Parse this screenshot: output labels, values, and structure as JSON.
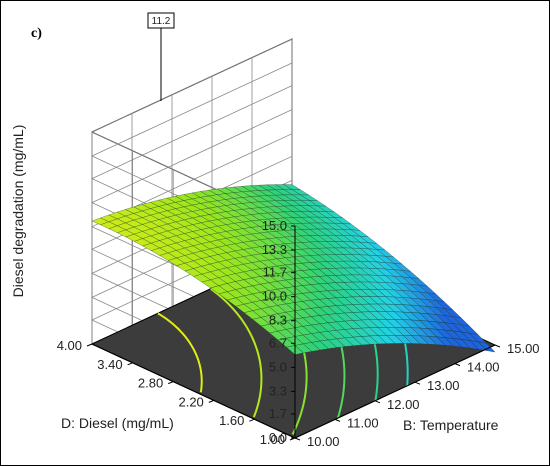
{
  "panel_label": "c)",
  "chart_data": {
    "type": "surface",
    "title": "",
    "zlabel": "Diesel degradation (mg/mL)",
    "xlabel": "B: Temperature",
    "ylabel": "D: Diesel (mg/mL)",
    "x_ticks": [
      "10.00",
      "11.00",
      "12.00",
      "13.00",
      "14.00",
      "15.00"
    ],
    "y_ticks": [
      "1.00",
      "1.60",
      "2.20",
      "2.80",
      "3.40",
      "4.00"
    ],
    "z_ticks": [
      "0.0",
      "1.7",
      "3.3",
      "5.0",
      "6.7",
      "8.3",
      "10.0",
      "11.7",
      "13.3",
      "15.0"
    ],
    "xlim": [
      10,
      15
    ],
    "ylim": [
      1,
      4
    ],
    "zlim": [
      0,
      15
    ],
    "max_callout": "11.2",
    "colormap": [
      "#1e64dc",
      "#24d2e6",
      "#2ed27a",
      "#9ae61e",
      "#f0f014"
    ],
    "grid": true
  }
}
